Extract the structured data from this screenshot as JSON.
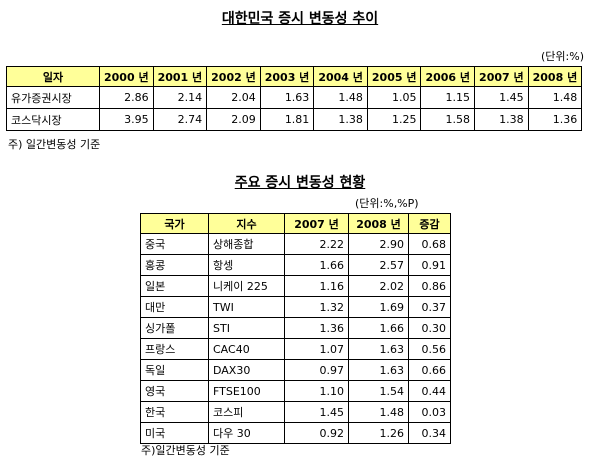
{
  "table1": {
    "title": "대한민국 증시 변동성 추이",
    "unit": "(단위:%)",
    "corner_label": "일자",
    "columns": [
      "2000 년",
      "2001 년",
      "2002 년",
      "2003 년",
      "2004 년",
      "2005 년",
      "2006 년",
      "2007 년",
      "2008 년"
    ],
    "rows": [
      {
        "label": "유가증권시장",
        "values": [
          "2.86",
          "2.14",
          "2.04",
          "1.63",
          "1.48",
          "1.05",
          "1.15",
          "1.45",
          "1.48"
        ]
      },
      {
        "label": "코스닥시장",
        "values": [
          "3.95",
          "2.74",
          "2.09",
          "1.81",
          "1.38",
          "1.25",
          "1.58",
          "1.38",
          "1.36"
        ]
      }
    ],
    "note": "주) 일간변동성 기준"
  },
  "table2": {
    "title": "주요 증시 변동성 현황",
    "unit": "(단위:%,%P)",
    "headers": [
      "국가",
      "지수",
      "2007 년",
      "2008 년",
      "증감"
    ],
    "rows": [
      {
        "country": "중국",
        "index": "상해종합",
        "y2007": "2.22",
        "y2008": "2.90",
        "change": "0.68"
      },
      {
        "country": "홍콩",
        "index": "항셍",
        "y2007": "1.66",
        "y2008": "2.57",
        "change": "0.91"
      },
      {
        "country": "일본",
        "index": "니케이 225",
        "y2007": "1.16",
        "y2008": "2.02",
        "change": "0.86"
      },
      {
        "country": "대만",
        "index": "TWI",
        "y2007": "1.32",
        "y2008": "1.69",
        "change": "0.37"
      },
      {
        "country": "싱가폴",
        "index": "STI",
        "y2007": "1.36",
        "y2008": "1.66",
        "change": "0.30"
      },
      {
        "country": "프랑스",
        "index": "CAC40",
        "y2007": "1.07",
        "y2008": "1.63",
        "change": "0.56"
      },
      {
        "country": "독일",
        "index": "DAX30",
        "y2007": "0.97",
        "y2008": "1.63",
        "change": "0.66"
      },
      {
        "country": "영국",
        "index": "FTSE100",
        "y2007": "1.10",
        "y2008": "1.54",
        "change": "0.44"
      },
      {
        "country": "한국",
        "index": "코스피",
        "y2007": "1.45",
        "y2008": "1.48",
        "change": "0.03"
      },
      {
        "country": "미국",
        "index": "다우 30",
        "y2007": "0.92",
        "y2008": "1.26",
        "change": "0.34"
      }
    ],
    "note": "주)일간변동성 기준"
  }
}
